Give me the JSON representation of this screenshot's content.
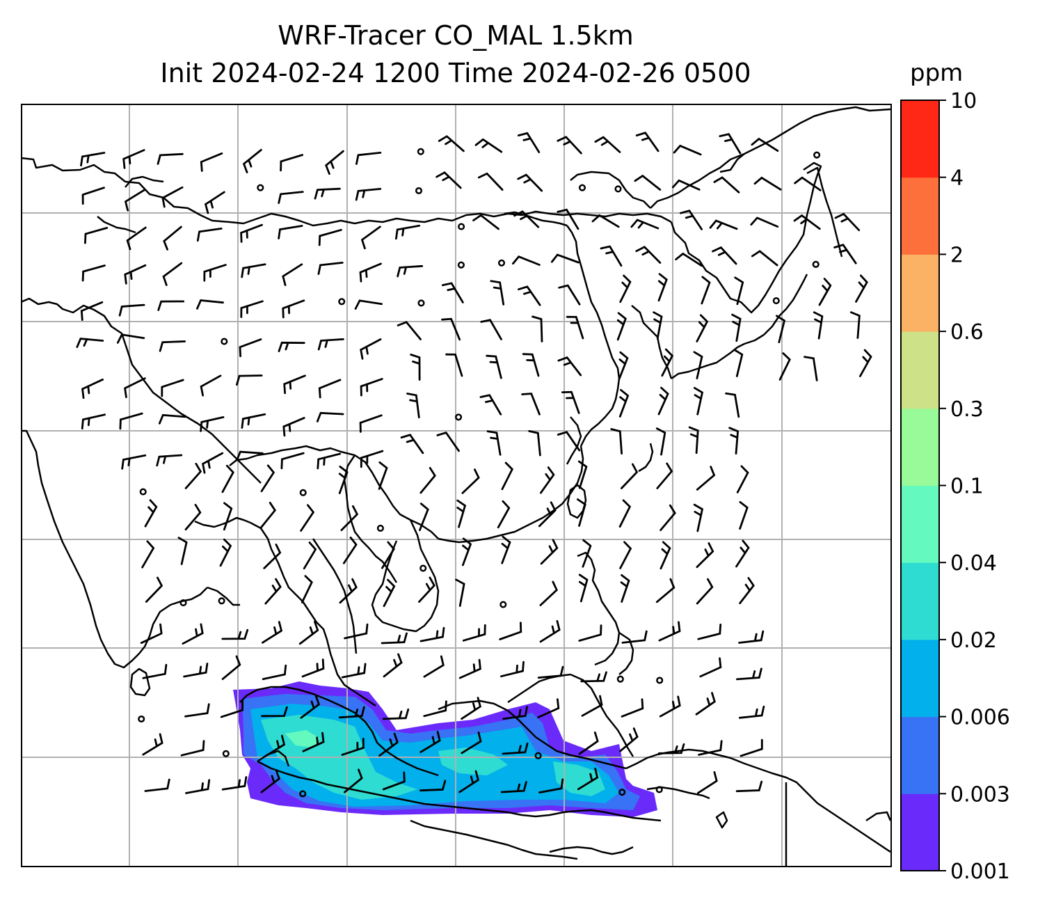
{
  "title": {
    "line1": "WRF-Tracer CO_MAL 1.5km",
    "line2": "Init 2024-02-24 1200 Time 2024-02-26 0500"
  },
  "colorbar": {
    "unit": "ppm",
    "tick_labels": [
      "0.001",
      "0.003",
      "0.006",
      "0.02",
      "0.04",
      "0.1",
      "0.3",
      "0.6",
      "2",
      "4",
      "10"
    ],
    "colors": [
      "#6a2bfa",
      "#3773f4",
      "#02b0ec",
      "#2fdcd2",
      "#64fabf",
      "#98fa98",
      "#cde188",
      "#fbb264",
      "#fd6f3b",
      "#ff2716"
    ]
  },
  "map": {
    "gridlines": true,
    "coastline_color": "#000000",
    "wind_barb_color": "#000000"
  }
}
